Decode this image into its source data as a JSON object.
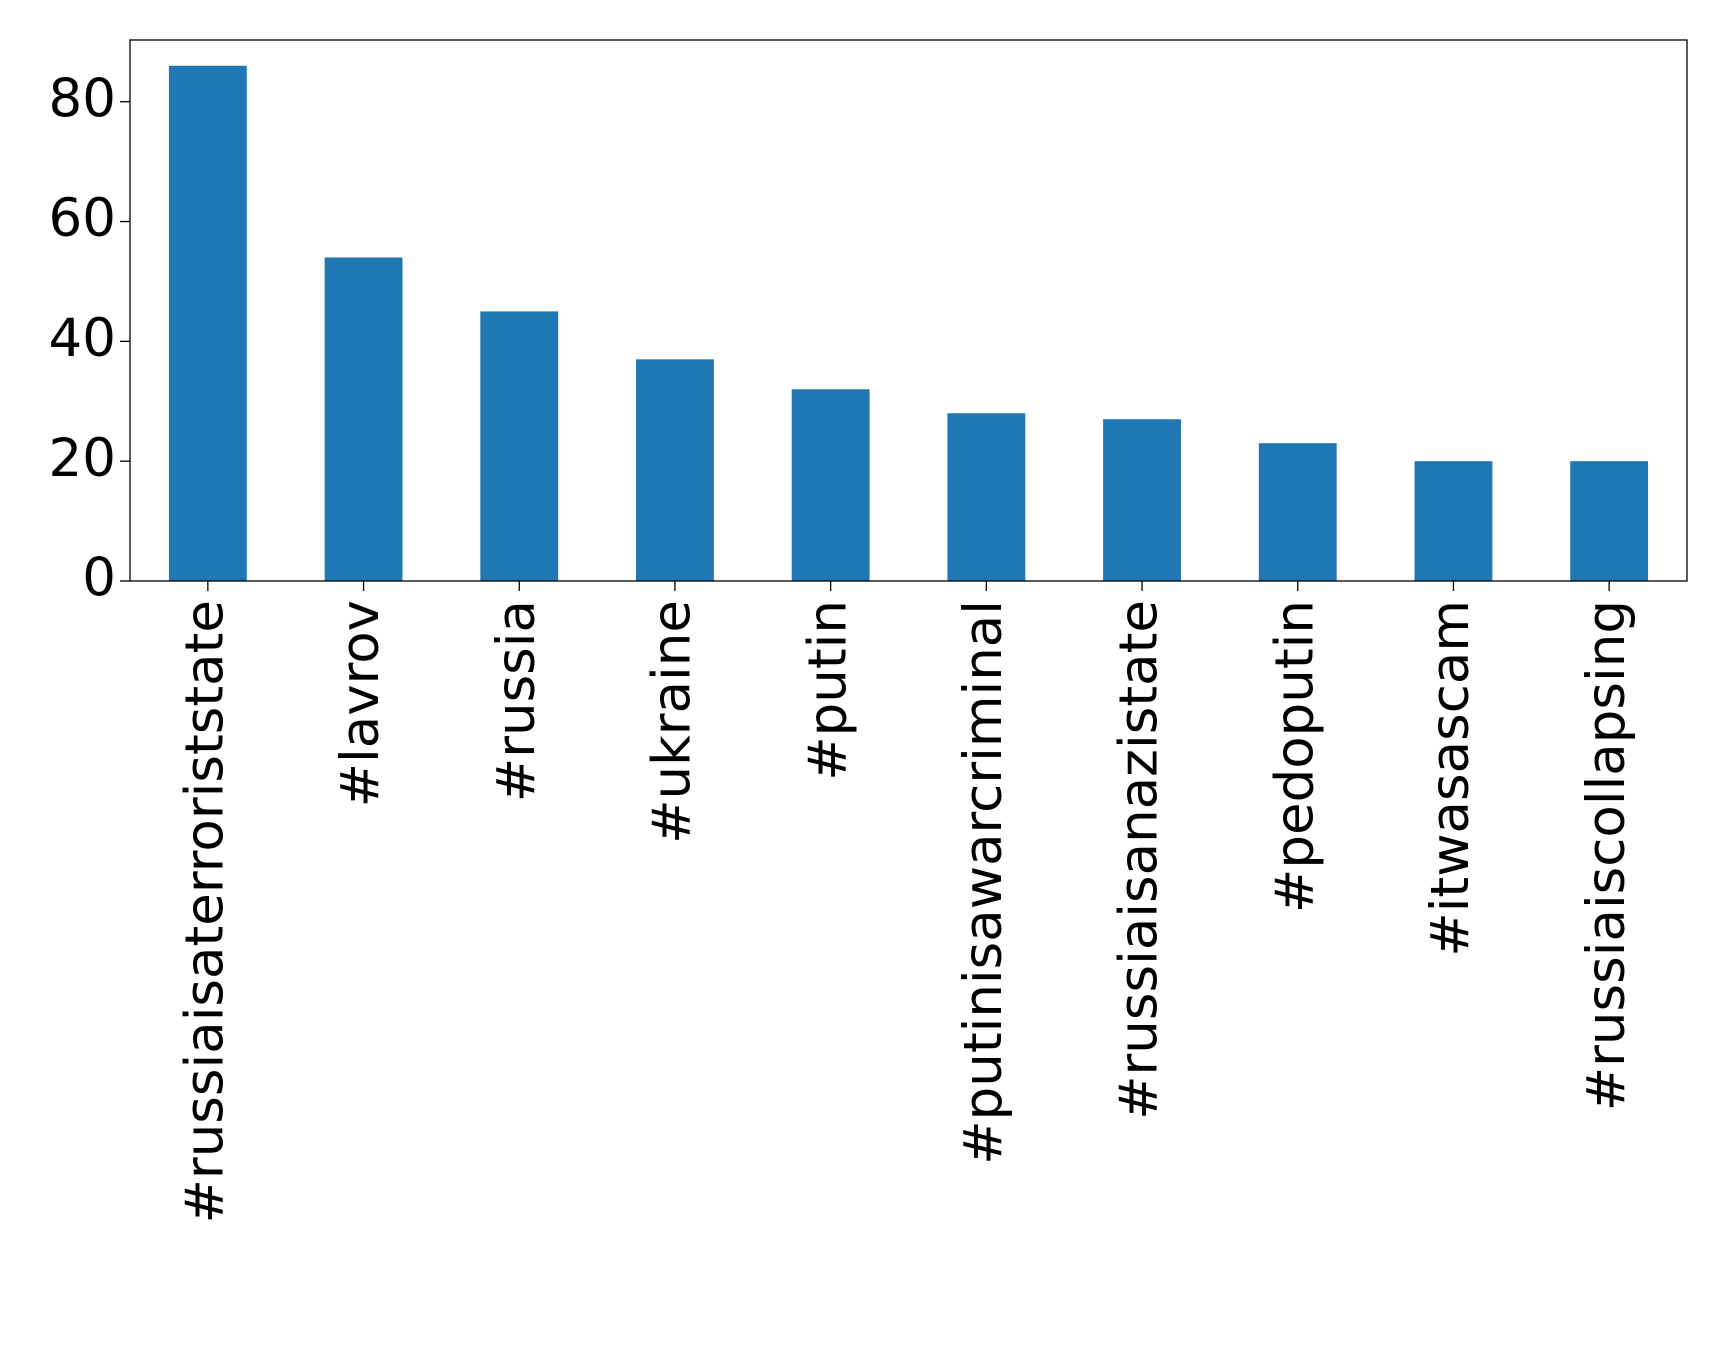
{
  "chart_data": {
    "type": "bar",
    "categories": [
      "#russiaisaterroriststate",
      "#lavrov",
      "#russia",
      "#ukraine",
      "#putin",
      "#putinisawarcriminal",
      "#russiaisanazistate",
      "#pedoputin",
      "#itwasascam",
      "#russiaiscollapsing"
    ],
    "values": [
      86,
      54,
      45,
      37,
      32,
      28,
      27,
      23,
      20,
      20
    ],
    "color": "#1f77b4",
    "ylim": [
      0,
      90.3
    ],
    "yticks": [
      0,
      20,
      40,
      60,
      80
    ],
    "grid": false
  }
}
